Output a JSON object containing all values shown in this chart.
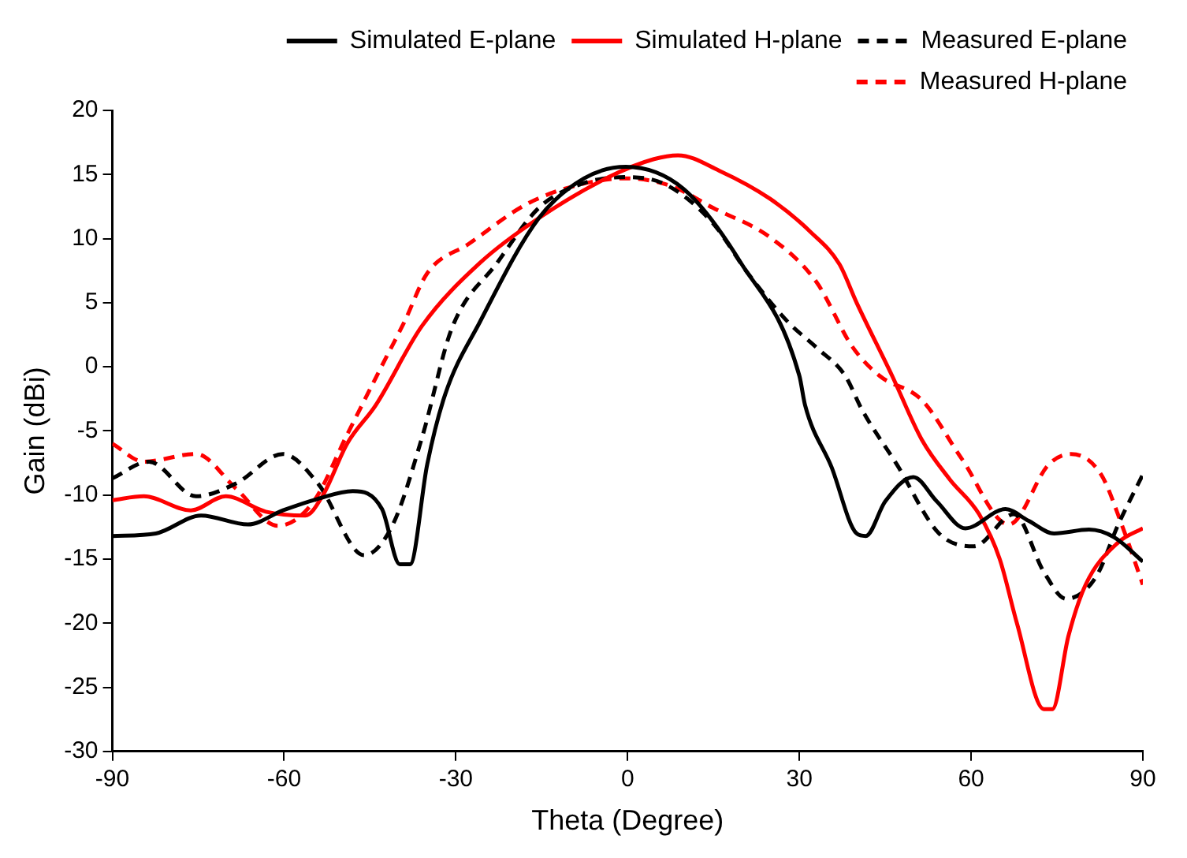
{
  "chart_data": {
    "type": "line",
    "xlabel": "Theta (Degree)",
    "ylabel": "Gain (dBi)",
    "xlim": [
      -90,
      90
    ],
    "xticks": [
      -90,
      -60,
      -30,
      0,
      30,
      60,
      90
    ],
    "ylim": [
      -30,
      20
    ],
    "yticks": [
      -30,
      -25,
      -20,
      -15,
      -10,
      -5,
      0,
      5,
      10,
      15,
      20
    ],
    "grid": false,
    "legend": "top right",
    "marker": "none",
    "series": [
      {
        "name": "Simulated E-plane",
        "color": "#000000",
        "line_style": "solid",
        "x": [
          -90,
          -82.4,
          -74.5,
          -66.3,
          -60.2,
          -54.1,
          -48,
          -42.9,
          -39.8,
          -38,
          -35,
          -31.9,
          -25.8,
          -15.5,
          -7.6,
          -0.3,
          9.7,
          19.8,
          30,
          31,
          35.6,
          40,
          41.6,
          45,
          49.9,
          54,
          59,
          66,
          70,
          74.5,
          80.6,
          85,
          90
        ],
        "values": [
          -13.2,
          -13,
          -11.6,
          -12.3,
          -11.2,
          -10.3,
          -9.7,
          -11.1,
          -15.4,
          -15.4,
          -7.6,
          -2.2,
          3.5,
          11.6,
          14.7,
          15.6,
          13.9,
          8.1,
          -0.7,
          -3,
          -7.8,
          -13,
          -13.2,
          -10.5,
          -8.6,
          -10.5,
          -12.6,
          -11.1,
          -12,
          -13,
          -12.7,
          -13.3,
          -15.2
        ]
      },
      {
        "name": "Simulated H-plane",
        "color": "#ff0000",
        "line_style": "solid",
        "x": [
          -90,
          -84.5,
          -76.3,
          -70.2,
          -63.2,
          -56.3,
          -53.2,
          -49,
          -44,
          -35.9,
          -25.8,
          -15.5,
          -3.3,
          4.6,
          8.8,
          16,
          24.9,
          32,
          37,
          40,
          46.2,
          51.4,
          56.3,
          61.4,
          65,
          68,
          72.7,
          74.2,
          77,
          80,
          85.7,
          90
        ],
        "values": [
          -10.4,
          -10.1,
          -11.2,
          -10.1,
          -11.3,
          -11.6,
          -10,
          -6,
          -3,
          3.2,
          8.1,
          11.6,
          14.8,
          16.2,
          16.5,
          15.3,
          13.1,
          10.5,
          8,
          5,
          -0.7,
          -5.7,
          -8.8,
          -11.5,
          -15,
          -20,
          -26.7,
          -26.7,
          -21,
          -17,
          -13.7,
          -12.6
        ]
      },
      {
        "name": "Measured E-plane",
        "color": "#000000",
        "line_style": "dashed",
        "x": [
          -90,
          -83.6,
          -75.4,
          -68.4,
          -60.2,
          -54.1,
          -46,
          -41,
          -35.9,
          -30.7,
          -22.8,
          -15.5,
          -8.5,
          -0.3,
          6.7,
          14.9,
          21,
          28,
          33,
          38,
          41,
          47,
          54.4,
          60.5,
          67.5,
          72.7,
          76.6,
          81.8,
          85.7,
          90
        ],
        "values": [
          -8.7,
          -7.4,
          -10.1,
          -9.1,
          -6.8,
          -9.1,
          -14.7,
          -12.3,
          -5.5,
          3,
          8.1,
          12.4,
          14.2,
          14.8,
          14.2,
          11.2,
          7.3,
          3.5,
          1.5,
          -0.7,
          -3.4,
          -7.6,
          -13,
          -14,
          -11.5,
          -16,
          -18.1,
          -16.4,
          -12.3,
          -8.4
        ]
      },
      {
        "name": "Measured H-plane",
        "color": "#ff0000",
        "line_style": "dashed",
        "x": [
          -90,
          -84.5,
          -75.4,
          -68.4,
          -61.1,
          -55,
          -49,
          -42.9,
          -39,
          -35,
          -27.7,
          -17.6,
          -8.5,
          -0.3,
          7.6,
          14.9,
          24.9,
          33,
          39.2,
          44,
          51.4,
          58.4,
          66.6,
          73.6,
          77.5,
          82.7,
          86.3,
          90
        ],
        "values": [
          -6,
          -7.4,
          -6.8,
          -9.5,
          -12.4,
          -10.6,
          -5.3,
          0.1,
          3.5,
          7.3,
          9.6,
          12.7,
          14.2,
          14.7,
          14.1,
          12.4,
          10.1,
          6.6,
          1.6,
          -0.7,
          -2.6,
          -7.2,
          -12.3,
          -7.6,
          -6.8,
          -8.4,
          -12.3,
          -17
        ]
      }
    ]
  }
}
